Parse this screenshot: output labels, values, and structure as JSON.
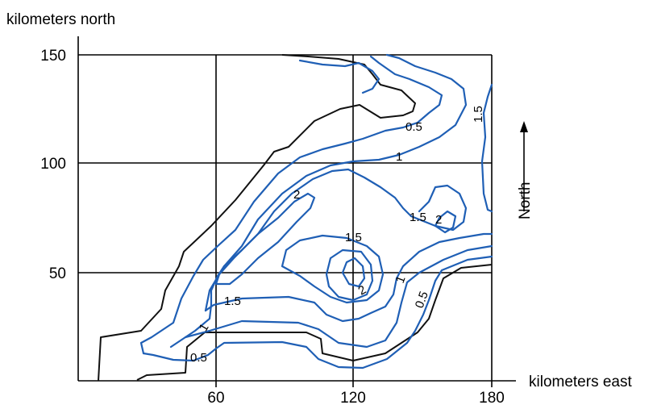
{
  "axes": {
    "y_title": "kilometers north",
    "x_title": "kilometers east",
    "y_ticks": [
      "150",
      "100",
      "50"
    ],
    "x_ticks": [
      "60",
      "120",
      "180"
    ]
  },
  "north_label": "North",
  "contour_labels": {
    "c05_top": "0.5",
    "c1_top": "1",
    "c15_right": "1.5",
    "c2_left": "2",
    "c15_mid_right": "1.5",
    "c2_right": "2",
    "c15_center": "1.5",
    "c2_center": "2",
    "c1_lower_right": "1",
    "c05_lower_right": "0.5",
    "c15_left": "1.5",
    "c1_left": "1",
    "c05_bottom": "0.5"
  },
  "colors": {
    "contour": "#1f5fb5",
    "boundary": "#111111",
    "grid": "#000000"
  }
}
